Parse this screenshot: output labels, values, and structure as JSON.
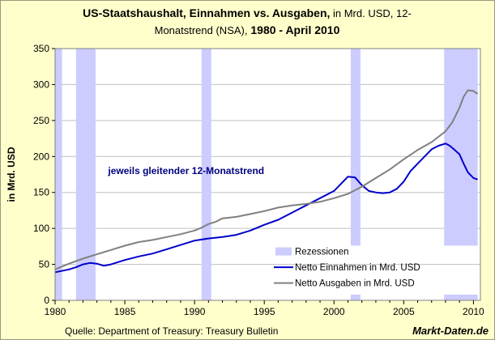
{
  "header": {
    "title_bold_1": "US-Staatshaushalt, Einnahmen vs. Ausgaben,",
    "title_normal_1": " in Mrd. USD, 12-",
    "title_normal_2": "Monatstrend (NSA),",
    "title_bold_2": " 1980 - April 2010"
  },
  "footer": {
    "source": "Quelle: Department of Treasury: Treasury Bulletin",
    "brand": "Markt-Daten.de"
  },
  "colors": {
    "plot_bg": "#FFFFFF",
    "page_bg": "#FFFFCC",
    "recession": "#CCCCFF",
    "income": "#0000CC",
    "expenses": "#808080",
    "grid": "#C0C0C0",
    "annotation": "#000080"
  },
  "chart_data": {
    "type": "line",
    "title": "US-Staatshaushalt, Einnahmen vs. Ausgaben, in Mrd. USD, 12-Monatstrend (NSA), 1980 - April 2010",
    "xlabel": "",
    "ylabel": "in Mrd. USD",
    "xlim": [
      1980,
      2010.5
    ],
    "ylim": [
      0,
      350
    ],
    "x_ticks": [
      1980,
      1985,
      1990,
      1995,
      2000,
      2005,
      2010
    ],
    "y_ticks": [
      0,
      50,
      100,
      150,
      200,
      250,
      300,
      350
    ],
    "grid": "horizontal",
    "legend_position": "bottom-right",
    "annotation": "jeweils gleitender 12-Monatstrend",
    "recessions": [
      {
        "start": 1980.0,
        "end": 1980.5
      },
      {
        "start": 1981.5,
        "end": 1982.9
      },
      {
        "start": 1990.5,
        "end": 1991.2
      },
      {
        "start": 2001.2,
        "end": 2001.9
      },
      {
        "start": 2007.9,
        "end": 2010.3
      }
    ],
    "legend": [
      {
        "key": "recession",
        "label": "Rezessionen"
      },
      {
        "key": "income",
        "label": "Netto Einnahmen in Mrd. USD"
      },
      {
        "key": "expenses",
        "label": "Netto Ausgaben in Mrd. USD"
      }
    ],
    "series": [
      {
        "name": "Netto Einnahmen in Mrd. USD",
        "key": "income",
        "x": [
          1980,
          1981,
          1981.5,
          1982,
          1982.5,
          1983,
          1983.5,
          1984,
          1985,
          1986,
          1987,
          1988,
          1989,
          1990,
          1991,
          1992,
          1993,
          1994,
          1995,
          1996,
          1997,
          1998,
          1999,
          2000,
          2000.5,
          2001,
          2001.5,
          2002,
          2002.5,
          2003,
          2003.5,
          2004,
          2004.5,
          2005,
          2005.5,
          2006,
          2006.5,
          2007,
          2007.5,
          2008,
          2008.3,
          2008.6,
          2009,
          2009.3,
          2009.6,
          2010,
          2010.3
        ],
        "y": [
          39,
          43,
          46,
          50,
          52,
          51,
          48,
          50,
          56,
          61,
          65,
          71,
          77,
          83,
          86,
          88,
          91,
          97,
          105,
          112,
          122,
          132,
          142,
          152,
          162,
          172,
          171,
          160,
          152,
          150,
          149,
          150,
          155,
          165,
          180,
          190,
          200,
          210,
          215,
          218,
          215,
          210,
          203,
          190,
          178,
          170,
          168
        ]
      },
      {
        "name": "Netto Ausgaben in Mrd. USD",
        "key": "expenses",
        "x": [
          1980,
          1981,
          1982,
          1983,
          1984,
          1985,
          1986,
          1987,
          1988,
          1989,
          1990,
          1990.5,
          1991,
          1991.5,
          1992,
          1993,
          1994,
          1995,
          1996,
          1997,
          1998,
          1999,
          2000,
          2001,
          2002,
          2003,
          2004,
          2005,
          2006,
          2007,
          2008,
          2008.5,
          2009,
          2009.3,
          2009.6,
          2010,
          2010.3
        ],
        "y": [
          43,
          51,
          58,
          64,
          70,
          76,
          81,
          84,
          88,
          92,
          97,
          101,
          106,
          109,
          114,
          116,
          120,
          124,
          129,
          132,
          134,
          137,
          142,
          148,
          158,
          170,
          182,
          196,
          209,
          220,
          235,
          248,
          268,
          283,
          292,
          291,
          287
        ]
      }
    ]
  }
}
